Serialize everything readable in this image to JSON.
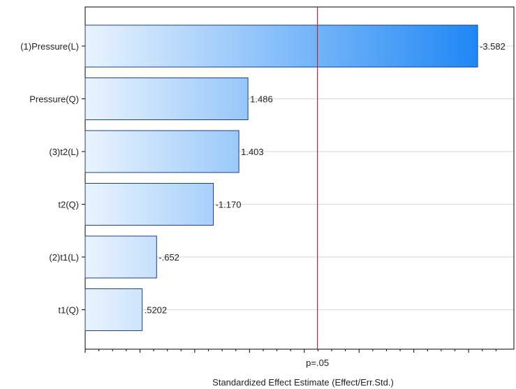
{
  "chart_data": {
    "type": "bar",
    "orientation": "horizontal",
    "title": "",
    "xlabel": "Standardized Effect Estimate (Effect/Err.Std.)",
    "ylabel": "",
    "categories": [
      "(1)Pressure(L)",
      "Pressure(Q)",
      "(3)t2(L)",
      "t2(Q)",
      "(2)t1(L)",
      "t1(Q)"
    ],
    "values": [
      3.582,
      1.486,
      1.403,
      1.17,
      0.652,
      0.5202
    ],
    "value_labels": [
      "-3.582",
      "1.486",
      "1.403",
      "-1.170",
      "-.652",
      ".5202"
    ],
    "xlim": [
      0,
      3.8
    ],
    "reference_line": {
      "value": 2.12,
      "label": "p=.05",
      "color": "#c0282f"
    },
    "bar_gradient": [
      "#eaf4fe",
      "#1f87f5"
    ],
    "bar_stroke": "#1a3f8f",
    "grid": "horizontal",
    "legend": "none"
  }
}
